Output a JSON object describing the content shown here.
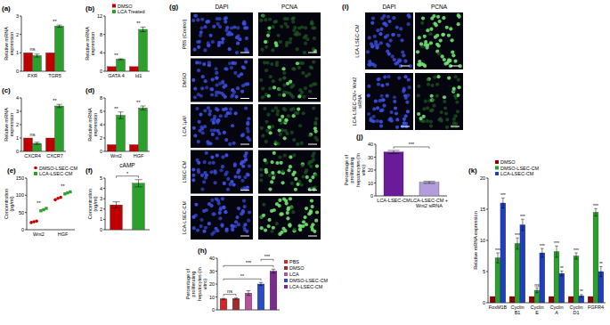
{
  "chart_data": [
    {
      "panel": "(a)",
      "type": "bar",
      "y_label": "Relative mRNA expression",
      "categories": [
        "FXR",
        "TGR5"
      ],
      "series": [
        {
          "color": "#c00000",
          "values": [
            1,
            1
          ]
        },
        {
          "color": "#2ca02c",
          "values": [
            0.85,
            2.45
          ],
          "errors": [
            0.08,
            0.06
          ]
        }
      ],
      "ylim": [
        0,
        3
      ],
      "yticks": [
        0,
        1,
        2,
        3
      ],
      "significance": [
        "ns",
        "**"
      ]
    },
    {
      "panel": "(b)",
      "type": "bar",
      "y_label": "Relative mRNA expression",
      "categories": [
        "GATA 4",
        "Id1"
      ],
      "series": [
        {
          "name": "DMSO",
          "color": "#c00000",
          "values": [
            1,
            1
          ]
        },
        {
          "name": "LCA Treated",
          "color": "#2ca02c",
          "values": [
            2.6,
            9.1
          ],
          "errors": [
            0.1,
            0.5
          ]
        }
      ],
      "ylim": [
        0,
        12
      ],
      "yticks": [
        0,
        4,
        8,
        12
      ],
      "legend": "top",
      "significance": [
        "**",
        "**"
      ]
    },
    {
      "panel": "(c)",
      "type": "bar",
      "y_label": "Relative mRNA expression",
      "categories": [
        "CXCR4",
        "CXCR7"
      ],
      "series": [
        {
          "color": "#c00000",
          "values": [
            1,
            1
          ]
        },
        {
          "color": "#2ca02c",
          "values": [
            0.6,
            3.4
          ],
          "errors": [
            0.08,
            0.12
          ]
        }
      ],
      "ylim": [
        0,
        4
      ],
      "yticks": [
        0,
        1,
        2,
        3,
        4
      ],
      "significance": [
        "ns",
        "**"
      ]
    },
    {
      "panel": "(d)",
      "type": "bar",
      "y_label": "Relative mRNA expression",
      "categories": [
        "Wnt2",
        "HGF"
      ],
      "series": [
        {
          "color": "#c00000",
          "values": [
            1,
            1
          ]
        },
        {
          "color": "#2ca02c",
          "values": [
            5.4,
            6.5
          ],
          "errors": [
            0.5,
            0.3
          ]
        }
      ],
      "ylim": [
        0,
        8
      ],
      "yticks": [
        0,
        2,
        4,
        6,
        8
      ],
      "significance": [
        "**",
        "**"
      ]
    },
    {
      "panel": "(e)",
      "type": "scatter",
      "y_label": "Concentration (pg/ml)",
      "categories": [
        "Wnt2",
        "HGF"
      ],
      "series": [
        {
          "name": "DMSO-LSEC-CM",
          "color": "#c00000",
          "marker": "circle",
          "values": [
            [
              21,
              23,
              25
            ],
            [
              87,
              91,
              94
            ]
          ]
        },
        {
          "name": "LCA-LSEC-CM",
          "color": "#2ca02c",
          "marker": "square",
          "values": [
            [
              55,
              58,
              62
            ],
            [
              104,
              107,
              110
            ]
          ]
        }
      ],
      "ylim": [
        0,
        150
      ],
      "yticks": [
        0,
        50,
        100,
        150
      ],
      "legend": "top",
      "significance": [
        "**",
        "**"
      ]
    },
    {
      "panel": "(f)",
      "type": "bar",
      "title": "cAMP",
      "y_label": "Concentration (ng/ml)",
      "categories": [
        null,
        null
      ],
      "values": [
        2.4,
        4.5
      ],
      "errors": [
        0.3,
        0.35
      ],
      "colors": [
        "#c00000",
        "#2ca02c"
      ],
      "ylim": [
        0,
        5
      ],
      "yticks": [
        0,
        1,
        2,
        3,
        4,
        5
      ],
      "tick_labels": "y",
      "comparisons": [
        {
          "from": 0,
          "to": 1,
          "text": "*"
        }
      ]
    },
    {
      "panel": "(h)",
      "type": "bar",
      "y_label": "Percentage of proliferating hepatocytes (In vitro)",
      "categories": [
        "PBS",
        "DMSO",
        "LCA",
        "DMSO-LSEC-CM",
        "LCA-LSEC-CM"
      ],
      "values": [
        8.5,
        8.7,
        13,
        20,
        30
      ],
      "errors": [
        0.4,
        0.5,
        1.8,
        1.2,
        1.5
      ],
      "colors": [
        "#d62728",
        "#a52a2a",
        "#b5529a",
        "#2b4cc4",
        "#7b2a8f"
      ],
      "ylim": [
        0,
        40
      ],
      "yticks": [
        0,
        10,
        20,
        30,
        40
      ],
      "legend": "right",
      "tick_labels": "y",
      "comparisons": [
        {
          "from": 0,
          "to": 1,
          "text": "ns"
        },
        {
          "from": 0,
          "to": 3,
          "text": "**"
        },
        {
          "from": 0,
          "to": 4,
          "text": "***"
        },
        {
          "from": 3,
          "to": 4,
          "text": "***"
        }
      ]
    },
    {
      "panel": "(j)",
      "type": "bar",
      "y_label": "Percentage of proliferating hepatocytes (In vitro)",
      "categories": [
        "LCA-LSEC-CM",
        "LCA-LSEC-CM + Wnt2 siRNA"
      ],
      "values": [
        34,
        10.5
      ],
      "errors": [
        1.2,
        0.8
      ],
      "colors": [
        "#6a1b9a",
        "#b39ddb"
      ],
      "ylim": [
        0,
        40
      ],
      "yticks": [
        0,
        10,
        20,
        30,
        40
      ],
      "comparisons": [
        {
          "from": 0,
          "to": 1,
          "text": "***"
        }
      ]
    },
    {
      "panel": "(k)",
      "type": "bar",
      "y_label": "Relative mRNA expression",
      "categories": [
        "FoxM1B",
        "Cyclin B1",
        "Cyclin E",
        "Cyclin A",
        "Cyclin D1",
        "FGFR4"
      ],
      "series": [
        {
          "name": "DMSO",
          "color": "#8b0000",
          "values": [
            1,
            1,
            1,
            1,
            1,
            1
          ]
        },
        {
          "name": "DMSO-LSEC-CM",
          "color": "#2ca02c",
          "values": [
            7.2,
            9.5,
            2,
            8.2,
            7.5,
            14.5
          ],
          "errors": [
            0.8,
            0.9,
            0.4,
            0.9,
            0.5,
            0.6
          ],
          "significance": [
            "***",
            "***",
            "ns",
            "***",
            "***",
            "***"
          ]
        },
        {
          "name": "LCA-LSEC-CM",
          "color": "#1f3fbf",
          "values": [
            16,
            12.5,
            8,
            4.7,
            1.1,
            5
          ],
          "errors": [
            0.8,
            0.9,
            0.7,
            0.4,
            0.2,
            0.8
          ],
          "significance": [
            "***",
            "***",
            "***",
            "**",
            "**",
            "**"
          ]
        }
      ],
      "ylim": [
        0,
        20
      ],
      "yticks": [
        0,
        5,
        10,
        15,
        20
      ],
      "legend": "top"
    }
  ],
  "micrographs": [
    {
      "panel": "(g)",
      "columns": [
        "DAPI",
        "PCNA"
      ],
      "rows": [
        "PBS (Control)",
        "DMSO",
        "LCA 1μM",
        "LSEC-CM",
        "LCA-LSEC-CM"
      ]
    },
    {
      "panel": "(i)",
      "columns": [
        "DAPI",
        "PCNA"
      ],
      "rows": [
        "LCA-LSEC-CM",
        "LCA-LSEC-CM+ Wnt2 siRNA"
      ]
    }
  ]
}
